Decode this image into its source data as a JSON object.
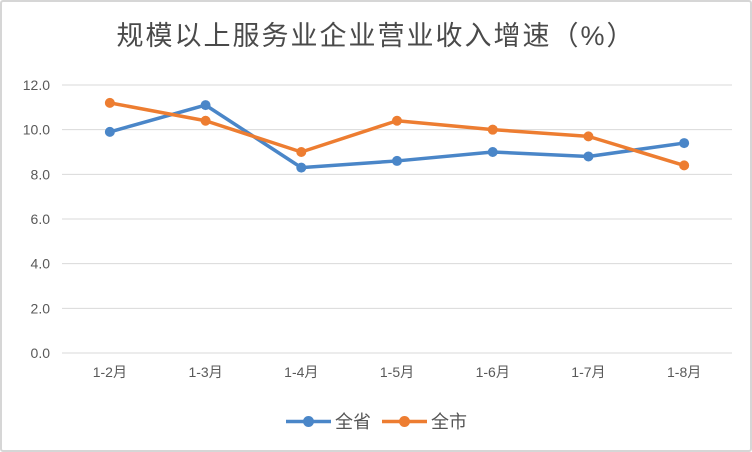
{
  "chart_data": {
    "type": "line",
    "title": "规模以上服务业企业营业收入增速（%）",
    "xlabel": "",
    "ylabel": "",
    "categories": [
      "1-2月",
      "1-3月",
      "1-4月",
      "1-5月",
      "1-6月",
      "1-7月",
      "1-8月"
    ],
    "series": [
      {
        "name": "全省",
        "color": "#4a86c8",
        "values": [
          9.9,
          11.1,
          8.3,
          8.6,
          9.0,
          8.8,
          9.4
        ]
      },
      {
        "name": "全市",
        "color": "#ed7d31",
        "values": [
          11.2,
          10.4,
          9.0,
          10.4,
          10.0,
          9.7,
          8.4
        ]
      }
    ],
    "ylim": [
      0,
      12
    ],
    "yticks": [
      "0.0",
      "2.0",
      "4.0",
      "6.0",
      "8.0",
      "10.0",
      "12.0"
    ],
    "grid": "horizontal-only",
    "legend_position": "bottom-center"
  },
  "colors": {
    "gridline": "#d9d9d9",
    "axis_text": "#595959",
    "title_text": "#4a4a4a",
    "frame_border": "#d6d6d6",
    "background": "#ffffff"
  }
}
